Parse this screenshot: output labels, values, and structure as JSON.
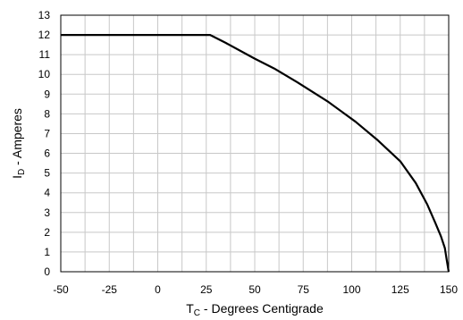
{
  "chart_data": {
    "type": "line",
    "title": "",
    "xlabel_main": "T",
    "xlabel_sub": "C",
    "xlabel_rest": " - Degrees Centigrade",
    "ylabel_main": "I",
    "ylabel_sub": "D",
    "ylabel_rest": " - Amperes",
    "xlim": [
      -50,
      150
    ],
    "ylim": [
      0,
      13
    ],
    "x_ticks": [
      -50,
      -25,
      0,
      25,
      50,
      75,
      100,
      125,
      150
    ],
    "y_ticks": [
      0,
      1,
      2,
      3,
      4,
      5,
      6,
      7,
      8,
      9,
      10,
      11,
      12,
      13
    ],
    "x_minor_step": 12.5,
    "grid": true,
    "series": [
      {
        "x": [
          -50,
          27,
          35,
          50,
          60,
          72,
          88,
          102,
          113,
          125,
          133,
          139,
          143,
          146,
          148,
          149,
          150
        ],
        "y": [
          12,
          12,
          11.6,
          10.8,
          10.3,
          9.6,
          8.6,
          7.6,
          6.7,
          5.6,
          4.5,
          3.4,
          2.5,
          1.8,
          1.2,
          0.6,
          0
        ]
      }
    ]
  }
}
